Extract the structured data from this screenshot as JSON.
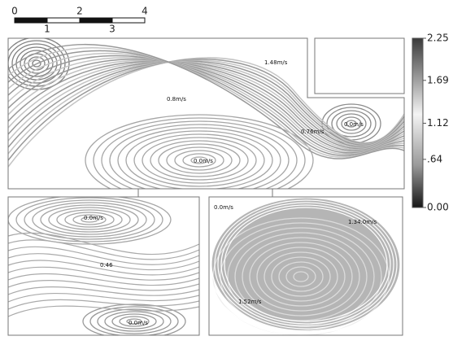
{
  "scale_bar": {
    "ticks": [
      0,
      1,
      2,
      3,
      4
    ]
  },
  "colorbar": {
    "lim": [
      0,
      2.25
    ],
    "ticks": [
      2.25,
      1.69,
      1.12,
      {
        "value": 0.64,
        "label": ".64"
      },
      {
        "value": 0,
        "label": "0.00"
      }
    ]
  },
  "panels": [
    {
      "labels": [
        "1.48m/s",
        "0.8m/s",
        "0.76m/s",
        "0.0m/s",
        "0.0m/s"
      ]
    },
    {
      "labels": [
        "0.0m/s",
        "0.46",
        "0.0m/s"
      ]
    },
    {
      "labels": [
        "0.0m/s",
        "1.34.0m/s",
        "1.52m/s"
      ]
    }
  ]
}
